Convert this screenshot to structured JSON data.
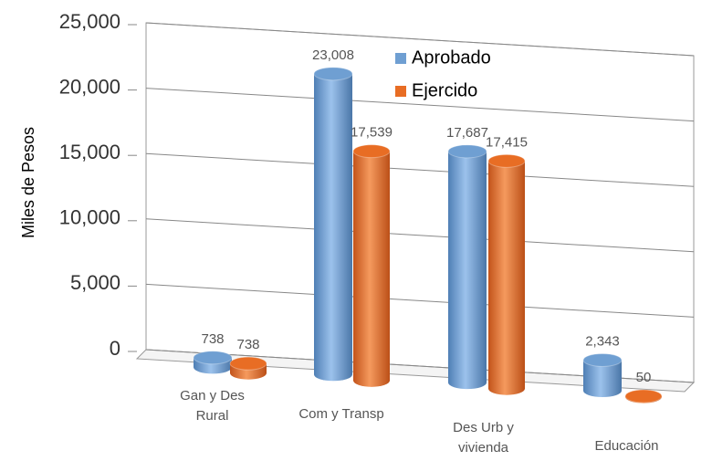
{
  "chart_data": {
    "type": "bar",
    "y_label": "Miles de Pesos",
    "categories": [
      "Gan y Des Rural",
      "Com y Transp",
      "Des Urb y vivienda",
      "Educación"
    ],
    "series": [
      {
        "name": "Aprobado",
        "color": "#6f9fd2",
        "values": [
          738,
          23008,
          17687,
          2343
        ],
        "value_labels": [
          "738",
          "23,008",
          "17,687",
          "2,343"
        ]
      },
      {
        "name": "Ejercido",
        "color": "#e86d24",
        "values": [
          738,
          17539,
          17415,
          50
        ],
        "value_labels": [
          "738",
          "17,539",
          "17,415",
          "50"
        ]
      }
    ],
    "ylim": [
      0,
      25000
    ],
    "yticks": [
      0,
      {
        "value": 5000,
        "label": "5,000"
      },
      {
        "value": 10000,
        "label": "10,000"
      },
      {
        "value": 15000,
        "label": "15,000"
      },
      {
        "value": 20000,
        "label": "20,000"
      },
      {
        "value": 25000,
        "label": "25,000"
      }
    ],
    "grid": true,
    "legend": "top"
  }
}
